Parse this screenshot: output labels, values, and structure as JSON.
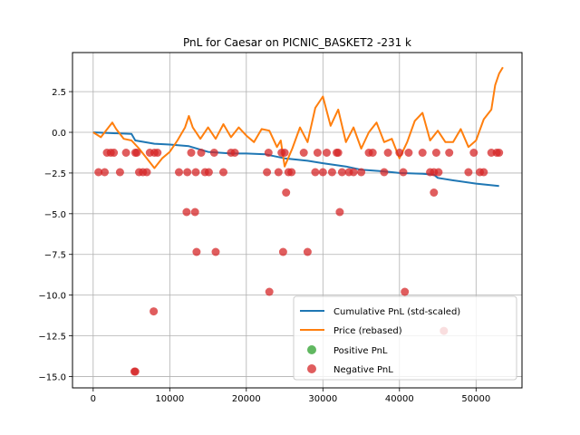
{
  "chart_data": {
    "type": "line",
    "title": "PnL for Caesar on PICNIC_BASKET2 -231 k",
    "xlabel": "",
    "ylabel": "",
    "xlim": [
      -2700,
      56000
    ],
    "ylim": [
      -15.7,
      4.9
    ],
    "xticks": [
      0,
      10000,
      20000,
      30000,
      40000,
      50000
    ],
    "xtick_labels": [
      "0",
      "10000",
      "20000",
      "30000",
      "40000",
      "50000"
    ],
    "yticks": [
      2.5,
      0.0,
      -2.5,
      -5.0,
      -7.5,
      -10.0,
      -12.5,
      -15.0
    ],
    "ytick_labels": [
      "2.5",
      "0.0",
      "−2.5",
      "−5.0",
      "−7.5",
      "−10.0",
      "−12.5",
      "−15.0"
    ],
    "grid": true,
    "legend_position": "lower-right",
    "series": [
      {
        "name": "Cumulative PnL (std-scaled)",
        "kind": "line",
        "color": "#1f77b4",
        "x": [
          0,
          5000,
          5500,
          8000,
          10000,
          12500,
          15000,
          18000,
          20000,
          22500,
          25000,
          28000,
          30000,
          33000,
          35000,
          38000,
          40000,
          43000,
          44500,
          45000,
          47000,
          50000,
          53000
        ],
        "y": [
          0.0,
          -0.1,
          -0.5,
          -0.7,
          -0.75,
          -0.85,
          -1.2,
          -1.3,
          -1.3,
          -1.35,
          -1.6,
          -1.75,
          -1.9,
          -2.1,
          -2.3,
          -2.4,
          -2.5,
          -2.55,
          -2.6,
          -2.8,
          -2.95,
          -3.15,
          -3.3
        ]
      },
      {
        "name": "Price (rebased)",
        "kind": "line",
        "color": "#ff7f0e",
        "x": [
          0,
          1000,
          2000,
          2500,
          3000,
          4000,
          5000,
          6000,
          7000,
          8000,
          9000,
          10000,
          11000,
          12000,
          12500,
          13000,
          14000,
          15000,
          16000,
          17000,
          18000,
          19000,
          20000,
          21000,
          22000,
          23000,
          24000,
          24500,
          25000,
          26000,
          27000,
          28000,
          29000,
          30000,
          31000,
          32000,
          33000,
          34000,
          35000,
          36000,
          37000,
          38000,
          39000,
          40000,
          41000,
          42000,
          43000,
          44000,
          45000,
          46000,
          47000,
          48000,
          49000,
          50000,
          51000,
          52000,
          52500,
          53000,
          53500
        ],
        "y": [
          0.0,
          -0.3,
          0.3,
          0.6,
          0.2,
          -0.4,
          -0.5,
          -1.0,
          -1.6,
          -2.2,
          -1.6,
          -1.2,
          -0.5,
          0.3,
          1.0,
          0.3,
          -0.4,
          0.3,
          -0.4,
          0.5,
          -0.3,
          0.3,
          -0.2,
          -0.6,
          0.2,
          0.1,
          -0.9,
          -0.5,
          -2.1,
          -1.0,
          0.3,
          -0.6,
          1.5,
          2.2,
          0.4,
          1.4,
          -0.6,
          0.3,
          -1.0,
          0.0,
          0.6,
          -0.6,
          -0.4,
          -1.6,
          -0.6,
          0.7,
          1.2,
          -0.5,
          0.1,
          -0.6,
          -0.6,
          0.2,
          -0.9,
          -0.5,
          0.8,
          1.4,
          2.9,
          3.6,
          4.0
        ]
      },
      {
        "name": "Positive PnL",
        "kind": "scatter",
        "color": "#2ca02c",
        "x": [],
        "y": []
      },
      {
        "name": "Negative PnL",
        "kind": "scatter",
        "color": "#d62728",
        "x": [
          700,
          1500,
          2300,
          2700,
          3500,
          4300,
          5500,
          5700,
          6000,
          6500,
          7000,
          7400,
          8000,
          8400,
          11200,
          12300,
          12800,
          13400,
          14100,
          14600,
          15100,
          15800,
          17000,
          18000,
          18500,
          22700,
          22900,
          24200,
          24600,
          25000,
          25500,
          25900,
          27500,
          29000,
          29300,
          30000,
          30500,
          31200,
          31800,
          32000,
          32500,
          33400,
          34000,
          35000,
          36000,
          36500,
          38000,
          38500,
          40000,
          40500,
          41200,
          43000,
          44000,
          44500,
          44800,
          45100,
          46500,
          49000,
          49700,
          50500,
          51000,
          52000,
          52700,
          53000,
          1800,
          7900,
          12200,
          13300,
          13500,
          16000,
          23000,
          24800,
          25200,
          28000,
          32200,
          40700,
          44500,
          45800,
          5400,
          5500
        ],
        "y": [
          -2.45,
          -2.45,
          -1.25,
          -1.25,
          -2.45,
          -1.25,
          -1.25,
          -1.25,
          -2.45,
          -2.45,
          -2.45,
          -1.25,
          -1.25,
          -1.25,
          -2.45,
          -2.45,
          -1.25,
          -2.45,
          -1.25,
          -2.45,
          -2.45,
          -1.25,
          -2.45,
          -1.25,
          -1.25,
          -2.45,
          -1.25,
          -2.45,
          -1.25,
          -1.25,
          -2.45,
          -2.45,
          -1.25,
          -2.45,
          -1.25,
          -2.45,
          -1.25,
          -2.45,
          -1.25,
          -1.25,
          -2.45,
          -2.45,
          -2.45,
          -2.45,
          -1.25,
          -1.25,
          -2.45,
          -1.25,
          -1.25,
          -2.45,
          -1.25,
          -1.25,
          -2.45,
          -2.45,
          -1.25,
          -2.45,
          -1.25,
          -2.45,
          -1.25,
          -2.45,
          -2.45,
          -1.25,
          -1.25,
          -1.25,
          -1.25,
          -11.0,
          -4.9,
          -4.9,
          -7.35,
          -7.35,
          -9.8,
          -7.35,
          -3.7,
          -7.35,
          -4.9,
          -9.8,
          -3.7,
          -12.2,
          -14.7,
          -14.7
        ]
      }
    ]
  }
}
